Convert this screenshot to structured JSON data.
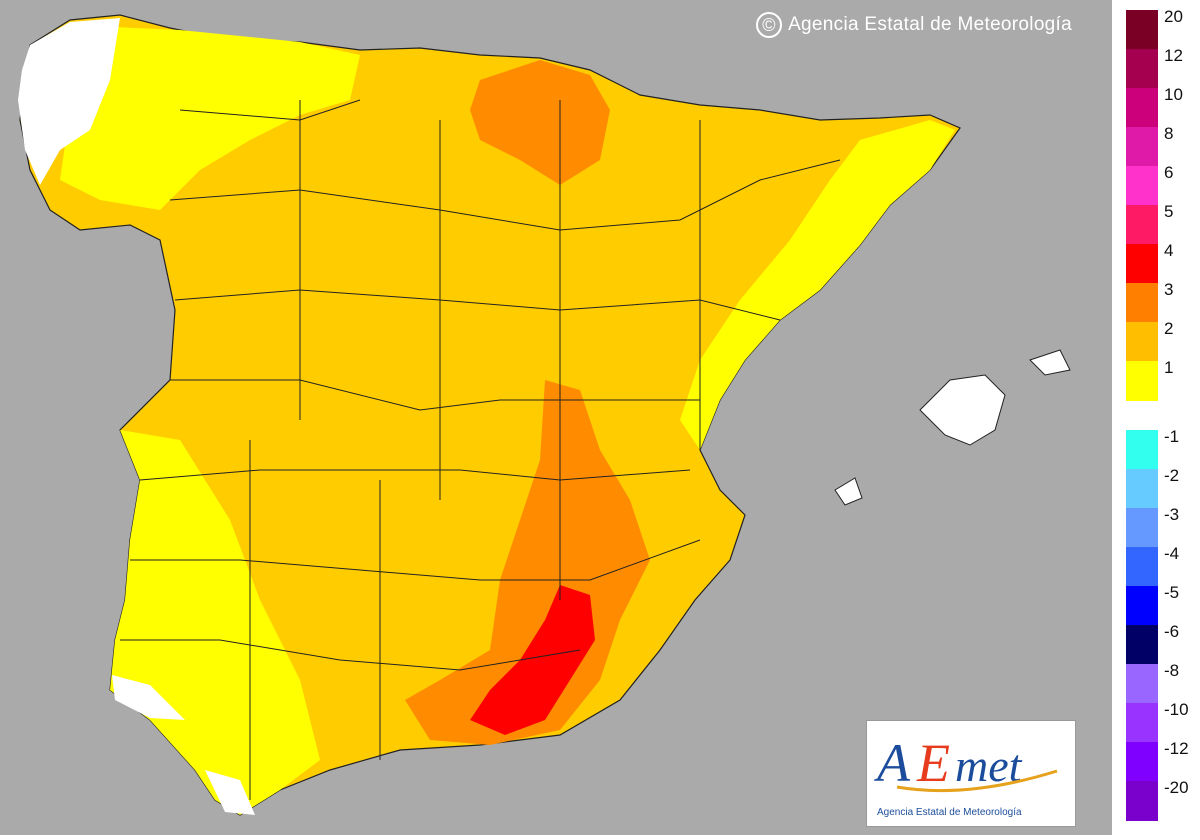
{
  "credit": {
    "symbol": "©",
    "text": "Agencia Estatal de Meteorología"
  },
  "logo": {
    "text": "AEmet",
    "subtitle": "Agencia Estatal de Meteorología"
  },
  "legend": {
    "positive": [
      {
        "label": "20",
        "color": "#7a0026"
      },
      {
        "label": "12",
        "color": "#a50050"
      },
      {
        "label": "10",
        "color": "#cc007a"
      },
      {
        "label": "8",
        "color": "#e01aa8"
      },
      {
        "label": "6",
        "color": "#ff33cc"
      },
      {
        "label": "5",
        "color": "#ff1a66"
      },
      {
        "label": "4",
        "color": "#ff0000"
      },
      {
        "label": "3",
        "color": "#ff8000"
      },
      {
        "label": "2",
        "color": "#ffbf00"
      },
      {
        "label": "1",
        "color": "#ffff00"
      }
    ],
    "negative": [
      {
        "label": "-1",
        "color": "#33ffee"
      },
      {
        "label": "-2",
        "color": "#66ccff"
      },
      {
        "label": "-3",
        "color": "#6699ff"
      },
      {
        "label": "-4",
        "color": "#3366ff"
      },
      {
        "label": "-5",
        "color": "#0000ff"
      },
      {
        "label": "-6",
        "color": "#000066"
      },
      {
        "label": "-8",
        "color": "#9966ff"
      },
      {
        "label": "-10",
        "color": "#9933ff"
      },
      {
        "label": "-12",
        "color": "#8000ff"
      },
      {
        "label": "-20",
        "color": "#7a00cc"
      }
    ]
  },
  "colors": {
    "sea": "#aaaaaa",
    "level1": "#ffff00",
    "level2": "#ffcc00",
    "level3": "#ff8c00",
    "level4": "#ff0000",
    "nodata": "#ffffff"
  }
}
